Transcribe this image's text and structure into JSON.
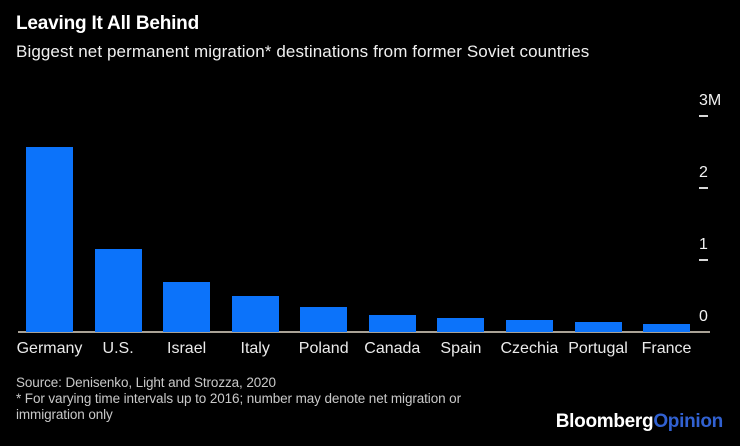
{
  "header": {
    "title": "Leaving It All Behind",
    "subtitle": "Biggest net permanent migration* destinations from former Soviet countries"
  },
  "chart_data": {
    "type": "bar",
    "title": "Leaving It All Behind",
    "subtitle": "Biggest net permanent migration* destinations from former Soviet countries",
    "categories": [
      "Germany",
      "U.S.",
      "Israel",
      "Italy",
      "Poland",
      "Canada",
      "Spain",
      "Czechia",
      "Portugal",
      "France"
    ],
    "values": [
      2.57,
      1.15,
      0.69,
      0.5,
      0.35,
      0.24,
      0.19,
      0.17,
      0.14,
      0.11
    ],
    "unit": "millions of people",
    "xlabel": "",
    "ylabel": "",
    "ylim": [
      0,
      3
    ],
    "yticks": [
      {
        "value": 3,
        "label": "3M"
      },
      {
        "value": 2,
        "label": "2"
      },
      {
        "value": 1,
        "label": "1"
      },
      {
        "value": 0,
        "label": "0"
      }
    ],
    "grid": false,
    "legend": "none",
    "axis_label_side": "right",
    "bar_color": "#0C73FA"
  },
  "footer": {
    "source": "Source: Denisenko, Light and Strozza, 2020",
    "footnote_lines": [
      "* For varying time intervals up to 2016; number may denote net migration or",
      "immigration only"
    ],
    "logo": {
      "part1": "Bloomberg",
      "part2": "Opinion",
      "part2_color": "#3161D1"
    }
  },
  "colors": {
    "background": "#000000",
    "bar": "#0C73FA",
    "axis_line": "#A9A296",
    "title_text": "#FFFFFF",
    "label_text": "#EBEBEB",
    "footnote_text": "#C9C9C9"
  }
}
